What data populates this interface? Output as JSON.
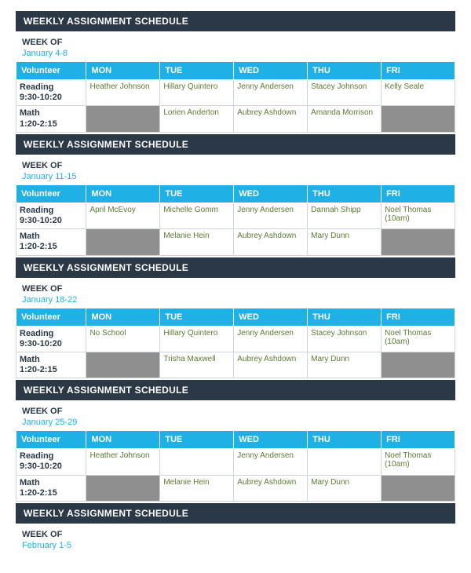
{
  "colors": {
    "title_bar_bg": "#2b3946",
    "title_bar_text": "#ffffff",
    "header_row_bg": "#1fb0e6",
    "header_row_text": "#ffffff",
    "cell_text": "#5c7a34",
    "timecell_text": "#2b3946",
    "shaded_cell": "#8f8f8f",
    "border": "#cfd6db",
    "note_text": "#c04a3a"
  },
  "titleText": "WEEKLY ASSIGNMENT SCHEDULE",
  "weekOfLabel": "WEEK OF",
  "columns": [
    "Volunteer",
    "MON",
    "TUE",
    "WED",
    "THU",
    "FRI"
  ],
  "timeslots": [
    {
      "label_line1": "Reading",
      "label_line2": "9:30-10:20"
    },
    {
      "label_line1": "Math",
      "label_line2": "1:20-2:15"
    }
  ],
  "weeks": [
    {
      "weekOf": "January 4-8",
      "rows": [
        {
          "cells": [
            {
              "text": "Heather Johnson"
            },
            {
              "text": "Hillary Quintero"
            },
            {
              "text": "Jenny Andersen"
            },
            {
              "text": "Stacey Johnson"
            },
            {
              "text": "Kelly Seale"
            }
          ]
        },
        {
          "cells": [
            {
              "text": "",
              "shaded": true
            },
            {
              "text": "Lorien Anderton"
            },
            {
              "text": "Aubrey Ashdown"
            },
            {
              "text": "Amanda Morrison"
            },
            {
              "text": "",
              "shaded": true
            }
          ]
        }
      ]
    },
    {
      "weekOf": "January 11-15",
      "rows": [
        {
          "cells": [
            {
              "text": "April McEvoy"
            },
            {
              "text": "Michelle Gomm"
            },
            {
              "text": "Jenny Andersen"
            },
            {
              "text": "Dannah Shipp"
            },
            {
              "text": "Noel Thomas (10am)"
            }
          ]
        },
        {
          "cells": [
            {
              "text": "",
              "shaded": true
            },
            {
              "text": "Melanie Hein"
            },
            {
              "text": "Aubrey Ashdown"
            },
            {
              "text": "Mary Dunn"
            },
            {
              "text": "",
              "shaded": true
            }
          ]
        }
      ]
    },
    {
      "weekOf": "January 18-22",
      "rows": [
        {
          "cells": [
            {
              "text": "No School",
              "note": true
            },
            {
              "text": "Hillary Quintero"
            },
            {
              "text": "Jenny Andersen"
            },
            {
              "text": "Stacey Johnson"
            },
            {
              "text": "Noel Thomas (10am)"
            }
          ]
        },
        {
          "cells": [
            {
              "text": "",
              "shaded": true
            },
            {
              "text": "Trisha Maxwell"
            },
            {
              "text": "Aubrey Ashdown"
            },
            {
              "text": "Mary Dunn"
            },
            {
              "text": "",
              "shaded": true
            }
          ]
        }
      ]
    },
    {
      "weekOf": "January 25-29",
      "rows": [
        {
          "cells": [
            {
              "text": "Heather Johnson"
            },
            {
              "text": ""
            },
            {
              "text": "Jenny Andersen"
            },
            {
              "text": ""
            },
            {
              "text": "Noel Thomas (10am)"
            }
          ]
        },
        {
          "cells": [
            {
              "text": "",
              "shaded": true
            },
            {
              "text": "Melanie Hein"
            },
            {
              "text": "Aubrey Ashdown"
            },
            {
              "text": "Mary Dunn"
            },
            {
              "text": "",
              "shaded": true
            }
          ]
        }
      ]
    },
    {
      "weekOf": "February 1-5",
      "rows": []
    }
  ]
}
